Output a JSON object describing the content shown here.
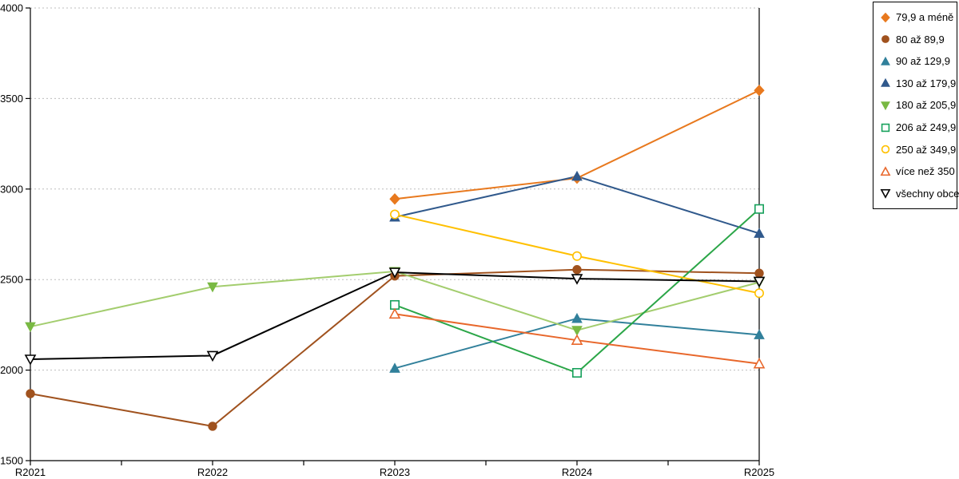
{
  "chart_data": {
    "type": "line",
    "title": "",
    "xlabel": "",
    "ylabel": "",
    "categories": [
      "R2021",
      "R2022",
      "R2023",
      "R2024",
      "R2025"
    ],
    "ylim": [
      1500,
      4000
    ],
    "yticks": [
      1500,
      2000,
      2500,
      3000,
      3500,
      4000
    ],
    "grid": "horizontal dotted gridlines at each y tick",
    "legend_position": "outside top-right, boxed",
    "axis_color": "#000000",
    "gridline_color": "#BDBDBD",
    "series": [
      {
        "name": "79,9 a méně",
        "marker": "diamond",
        "fill": "solid",
        "color": "#E8791E",
        "values": [
          null,
          null,
          2945,
          3060,
          3545
        ]
      },
      {
        "name": "80 až 89,9",
        "marker": "circle",
        "fill": "solid",
        "color": "#A0521E",
        "values": [
          1870,
          1690,
          2520,
          2555,
          2535
        ]
      },
      {
        "name": "90 až 129,9",
        "marker": "triangle-up",
        "fill": "solid",
        "color": "#31809B",
        "values": [
          null,
          null,
          2010,
          2285,
          2195
        ]
      },
      {
        "name": "130 až 179,9",
        "marker": "triangle-up",
        "fill": "solid",
        "color": "#30598C",
        "values": [
          null,
          null,
          2845,
          3070,
          2755
        ]
      },
      {
        "name": "180 až 205,9",
        "marker": "triangle-down",
        "fill": "solid",
        "color": "#79B943",
        "line_color": "#A3CD6E",
        "values": [
          2240,
          2460,
          2545,
          2220,
          2485
        ]
      },
      {
        "name": "206 až 249,9",
        "marker": "square",
        "fill": "hollow",
        "color": "#17A15C",
        "line_color": "#2BA648",
        "values": [
          null,
          null,
          2360,
          1985,
          2890
        ]
      },
      {
        "name": "250 až 349,9",
        "marker": "circle",
        "fill": "hollow",
        "color": "#FFC000",
        "values": [
          null,
          null,
          2860,
          2630,
          2425
        ]
      },
      {
        "name": "více než 350",
        "marker": "triangle-up",
        "fill": "hollow",
        "color": "#E8672B",
        "values": [
          null,
          null,
          2310,
          2165,
          2035
        ]
      },
      {
        "name": "všechny obce",
        "marker": "triangle-down",
        "fill": "hollow",
        "color": "#000000",
        "values": [
          2060,
          2080,
          2540,
          2505,
          2490
        ]
      }
    ]
  }
}
